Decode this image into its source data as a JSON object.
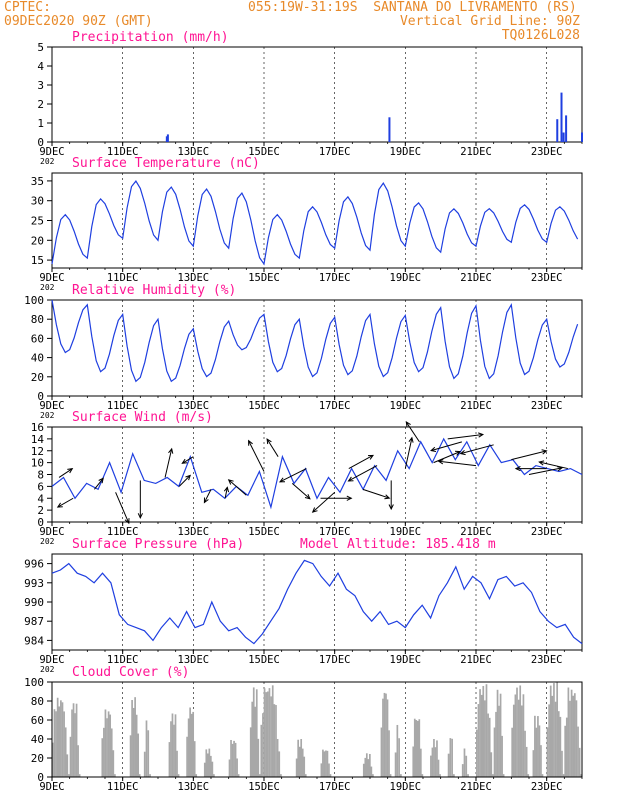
{
  "header": {
    "line1_left": "CPTEC:",
    "location": "055:19W-31:19S  SANTANA DO LIVRAMENTO (RS)",
    "line2_left": "09DEC2020 90Z (GMT)",
    "grid_note": "Vertical Grid Line: 90Z",
    "code": "TQ0126L028"
  },
  "colors": {
    "title": "#ff1493",
    "line": "#1f3fe0",
    "cloud": "#a8a8a8",
    "header": "#e88a2a",
    "arrow": "#000000"
  },
  "x_axis": {
    "ticks": [
      "9DEC",
      "11DEC",
      "13DEC",
      "15DEC",
      "17DEC",
      "19DEC",
      "21DEC",
      "23DEC"
    ],
    "tick_days": [
      9,
      11,
      13,
      15,
      17,
      19,
      21,
      23
    ],
    "start_day": 9,
    "end_day": 24,
    "year_stub": "202"
  },
  "chart_data": [
    {
      "type": "bar",
      "title": "Precipitation (mm/h)",
      "ylim": [
        0,
        5
      ],
      "yticks": [
        0,
        1,
        2,
        3,
        4,
        5
      ],
      "x": [
        12.25,
        12.28,
        18.55,
        23.3,
        23.42,
        23.48,
        23.55,
        24.0
      ],
      "values": [
        0.3,
        0.4,
        1.3,
        1.2,
        2.6,
        0.5,
        1.4,
        0.5
      ]
    },
    {
      "type": "line",
      "title": "Surface Temperature (nC)",
      "ylim": [
        13,
        37
      ],
      "yticks": [
        15,
        20,
        25,
        30,
        35
      ],
      "tmin": [
        14.0,
        15.5,
        20.5,
        20.0,
        18.5,
        18.0,
        14.0,
        15.5,
        18.0,
        17.5,
        18.5,
        17.0,
        18.5,
        19.5,
        19.5
      ],
      "tmax": [
        26.5,
        30.5,
        35.0,
        33.5,
        33.0,
        32.0,
        26.5,
        28.5,
        31.0,
        34.5,
        29.5,
        28.0,
        28.0,
        29.0,
        28.5
      ]
    },
    {
      "type": "line",
      "title": "Relative Humidity (%)",
      "ylim": [
        0,
        100
      ],
      "yticks": [
        0,
        20,
        40,
        60,
        80,
        100
      ],
      "rhmax": [
        100,
        95,
        85,
        80,
        70,
        78,
        85,
        80,
        82,
        85,
        84,
        92,
        94,
        95,
        80
      ],
      "rhmin": [
        45,
        25,
        15,
        15,
        20,
        48,
        25,
        20,
        22,
        20,
        25,
        18,
        18,
        22,
        30
      ]
    },
    {
      "type": "line",
      "title": "Surface Wind (m/s)",
      "ylim": [
        0,
        16
      ],
      "yticks": [
        0,
        2,
        4,
        6,
        8,
        10,
        12,
        14,
        16
      ],
      "speed": [
        6.0,
        7.5,
        4.0,
        6.5,
        5.5,
        10.0,
        5.0,
        11.5,
        7.0,
        6.5,
        7.5,
        6.0,
        11.0,
        5.0,
        5.5,
        4.0,
        6.0,
        4.5,
        8.5,
        2.5,
        11.0,
        6.5,
        9.0,
        4.0,
        7.5,
        5.0,
        9.0,
        5.5,
        9.5,
        7.0,
        12.0,
        9.0,
        13.5,
        10.0,
        14.0,
        10.5,
        13.5,
        9.5,
        13.0,
        10.0,
        10.5,
        8.0,
        9.5,
        9.0,
        8.5,
        9.0,
        8.0
      ],
      "arrows": [
        {
          "d": 9.2,
          "dx": 6,
          "dy": -4
        },
        {
          "d": 9.6,
          "dx": -7,
          "dy": 4
        },
        {
          "d": 10.2,
          "dx": 4,
          "dy": -5
        },
        {
          "d": 10.8,
          "dx": 6,
          "dy": 14
        },
        {
          "d": 11.5,
          "dx": 0,
          "dy": 17
        },
        {
          "d": 12.2,
          "dx": 3,
          "dy": -13
        },
        {
          "d": 12.6,
          "dx": 5,
          "dy": -5
        },
        {
          "d": 13.0,
          "dx": -5,
          "dy": 3
        },
        {
          "d": 13.5,
          "dx": -3,
          "dy": 6
        },
        {
          "d": 13.9,
          "dx": 1,
          "dy": -5
        },
        {
          "d": 14.5,
          "dx": -8,
          "dy": -7
        },
        {
          "d": 15.0,
          "dx": -7,
          "dy": -14
        },
        {
          "d": 15.4,
          "dx": -5,
          "dy": -8
        },
        {
          "d": 15.8,
          "dx": 8,
          "dy": 7
        },
        {
          "d": 16.2,
          "dx": -12,
          "dy": 6
        },
        {
          "d": 16.6,
          "dx": 14,
          "dy": 0
        },
        {
          "d": 17.0,
          "dx": -10,
          "dy": 9
        },
        {
          "d": 17.4,
          "dx": 11,
          "dy": -6
        },
        {
          "d": 17.8,
          "dx": 12,
          "dy": 4
        },
        {
          "d": 18.2,
          "dx": -13,
          "dy": 7
        },
        {
          "d": 18.6,
          "dx": 0,
          "dy": 13
        },
        {
          "d": 19.0,
          "dx": 3,
          "dy": -14
        },
        {
          "d": 19.4,
          "dx": -6,
          "dy": -9
        },
        {
          "d": 19.8,
          "dx": 12,
          "dy": -5
        },
        {
          "d": 20.2,
          "dx": 16,
          "dy": -2
        },
        {
          "d": 20.6,
          "dx": -14,
          "dy": 4
        },
        {
          "d": 21.0,
          "dx": -17,
          "dy": -2
        },
        {
          "d": 21.5,
          "dx": -15,
          "dy": 4
        },
        {
          "d": 22.0,
          "dx": 16,
          "dy": -4
        },
        {
          "d": 22.5,
          "dx": 15,
          "dy": -3
        },
        {
          "d": 23.0,
          "dx": -14,
          "dy": 0
        },
        {
          "d": 23.6,
          "dx": -13,
          "dy": -3
        }
      ]
    },
    {
      "type": "line",
      "title": "Surface Pressure (hPa)",
      "annotation": "Model Altitude: 185.418 m",
      "ylim": [
        982.5,
        997.5
      ],
      "yticks": [
        984,
        987,
        990,
        993,
        996
      ],
      "values": [
        994.5,
        995.0,
        996.0,
        994.5,
        994.0,
        993.0,
        994.5,
        993.0,
        988.0,
        986.5,
        986.0,
        985.5,
        984.0,
        986.0,
        987.5,
        986.0,
        988.5,
        986.0,
        986.5,
        990.0,
        987.0,
        985.5,
        986.0,
        984.5,
        983.5,
        985.0,
        987.0,
        989.0,
        992.0,
        994.5,
        996.5,
        996.0,
        994.0,
        992.5,
        994.5,
        992.0,
        991.0,
        988.5,
        987.0,
        988.5,
        986.5,
        987.0,
        986.0,
        988.0,
        989.5,
        987.5,
        991.0,
        993.0,
        995.5,
        992.0,
        994.0,
        993.0,
        990.5,
        993.5,
        994.0,
        992.5,
        993.0,
        991.5,
        988.5,
        987.0,
        986.0,
        986.5,
        984.5,
        983.5
      ]
    },
    {
      "type": "area",
      "title": "Cloud Cover (%)",
      "ylim": [
        0,
        100
      ],
      "yticks": [
        0,
        20,
        40,
        60,
        80,
        100
      ],
      "blocks": [
        [
          9.0,
          9.5,
          85
        ],
        [
          9.5,
          9.8,
          80
        ],
        [
          10.4,
          10.8,
          72
        ],
        [
          11.2,
          11.5,
          85
        ],
        [
          11.6,
          11.8,
          60
        ],
        [
          12.3,
          12.6,
          68
        ],
        [
          12.8,
          13.1,
          75
        ],
        [
          13.3,
          13.6,
          30
        ],
        [
          14.0,
          14.3,
          40
        ],
        [
          14.6,
          14.9,
          95
        ],
        [
          14.9,
          15.5,
          98
        ],
        [
          15.9,
          16.2,
          40
        ],
        [
          16.6,
          16.9,
          30
        ],
        [
          17.8,
          18.1,
          25
        ],
        [
          18.3,
          18.6,
          94
        ],
        [
          18.7,
          18.9,
          55
        ],
        [
          19.2,
          19.5,
          65
        ],
        [
          19.7,
          20.0,
          40
        ],
        [
          20.2,
          20.4,
          45
        ],
        [
          20.6,
          20.8,
          30
        ],
        [
          21.0,
          21.5,
          98
        ],
        [
          21.5,
          21.8,
          92
        ],
        [
          22.0,
          22.5,
          97
        ],
        [
          22.6,
          22.9,
          65
        ],
        [
          23.0,
          23.5,
          100
        ],
        [
          23.5,
          24.0,
          95
        ]
      ]
    }
  ]
}
